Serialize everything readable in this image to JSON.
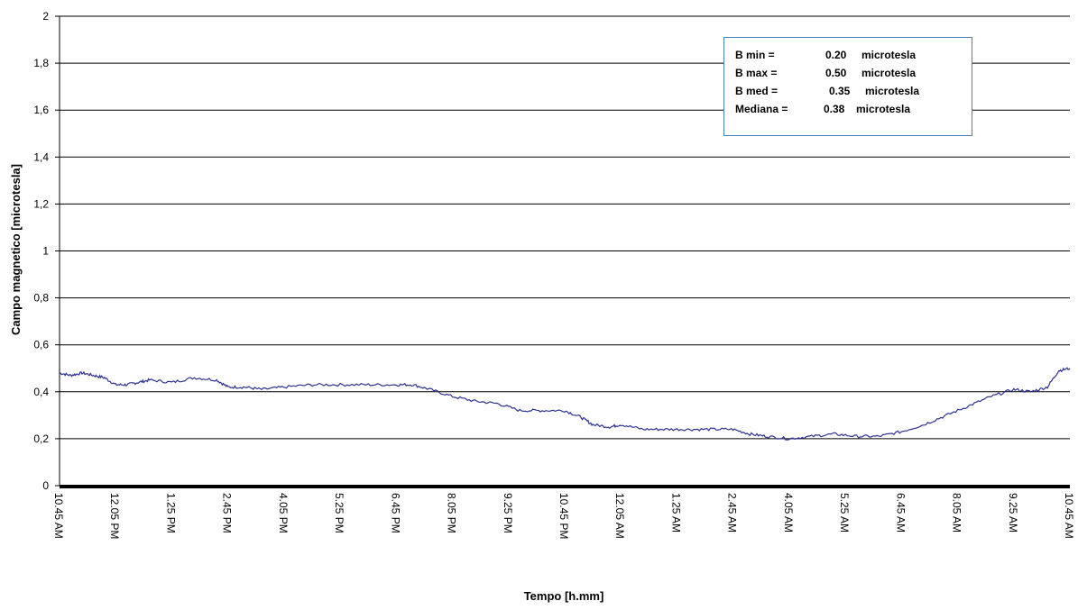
{
  "chart_data": {
    "type": "line",
    "title": "",
    "ylabel": "Campo magnetico [microtesla]",
    "xlabel": "Tempo [h.mm]",
    "ylim": [
      0,
      2
    ],
    "yticks": [
      "0",
      "0,2",
      "0,4",
      "0,6",
      "0,8",
      "1",
      "1,2",
      "1,4",
      "1,6",
      "1,8",
      "2"
    ],
    "xticks": [
      "10.45 AM",
      "12.05 PM",
      "1.25 PM",
      "2.45 PM",
      "4.05 PM",
      "5.25 PM",
      "6.45 PM",
      "8.05 PM",
      "9.25 PM",
      "10.45 PM",
      "12.05 AM",
      "1.25 AM",
      "2.45 AM",
      "4.05 AM",
      "5.25 AM",
      "6.45 AM",
      "8.05 AM",
      "9.25 AM",
      "10.45 AM"
    ],
    "grid": true,
    "line_color": "#2e3192",
    "series": [
      {
        "x_tick_index": [
          0,
          0.2,
          0.4,
          0.6,
          0.8,
          1.0,
          1.2,
          1.4,
          1.6,
          2.0,
          2.4,
          2.8,
          3.0,
          3.3,
          3.6,
          4.0,
          4.5,
          5.0,
          5.5,
          6.0,
          6.3,
          6.6,
          7.0,
          7.4,
          7.8,
          8.2,
          8.6,
          9.0,
          9.3,
          9.5,
          9.8,
          10.0,
          10.4,
          10.8,
          11.2,
          11.6,
          12.0,
          12.3,
          12.6,
          13.0,
          13.4,
          13.8,
          14.2,
          14.6,
          15.0,
          15.4,
          15.8,
          16.2,
          16.6,
          17.0,
          17.3,
          17.6,
          17.8,
          18.0
        ],
        "values": [
          0.48,
          0.47,
          0.48,
          0.47,
          0.46,
          0.43,
          0.43,
          0.44,
          0.45,
          0.44,
          0.46,
          0.45,
          0.42,
          0.42,
          0.41,
          0.42,
          0.43,
          0.43,
          0.43,
          0.43,
          0.43,
          0.41,
          0.38,
          0.36,
          0.35,
          0.32,
          0.32,
          0.32,
          0.29,
          0.26,
          0.25,
          0.26,
          0.24,
          0.24,
          0.24,
          0.24,
          0.24,
          0.22,
          0.21,
          0.2,
          0.21,
          0.22,
          0.21,
          0.21,
          0.23,
          0.26,
          0.3,
          0.34,
          0.38,
          0.41,
          0.4,
          0.42,
          0.49,
          0.5
        ]
      }
    ]
  },
  "stats": [
    {
      "label": "B min =",
      "value": "0.20",
      "unit": "microtesla"
    },
    {
      "label": "B max =",
      "value": "0.50",
      "unit": "microtesla"
    },
    {
      "label": "B med =",
      "value": "0.35",
      "unit": "microtesla"
    },
    {
      "label": "Mediana =",
      "value": "0.38",
      "unit": "microtesla"
    }
  ]
}
